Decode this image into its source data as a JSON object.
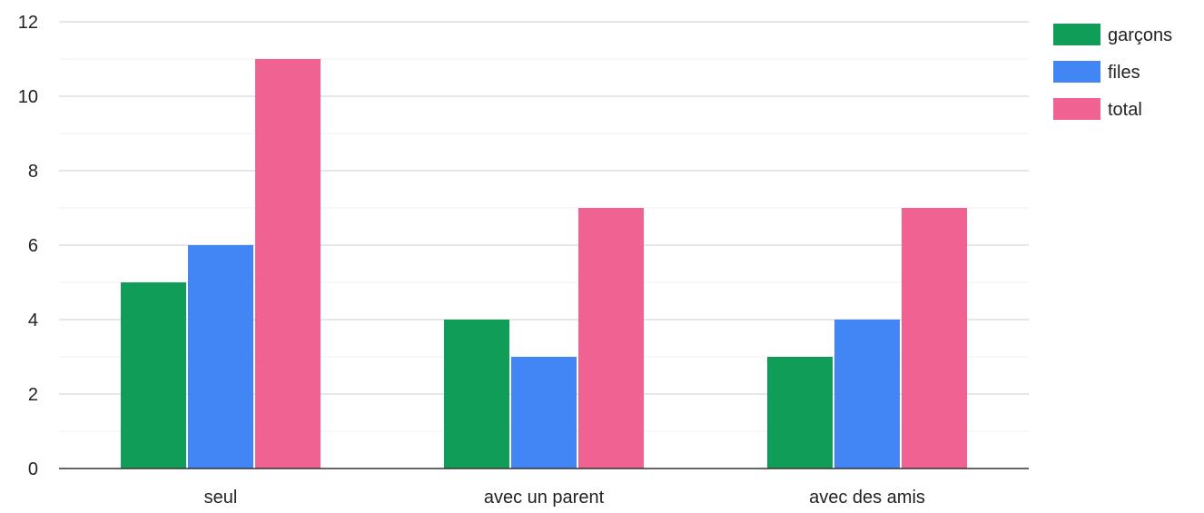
{
  "chart_data": {
    "type": "bar",
    "categories": [
      "seul",
      "avec un parent",
      "avec des amis"
    ],
    "series": [
      {
        "name": "garçons",
        "values": [
          5,
          4,
          3
        ],
        "color": "#0f9d58"
      },
      {
        "name": "files",
        "values": [
          6,
          3,
          4
        ],
        "color": "#4285f4"
      },
      {
        "name": "total",
        "values": [
          11,
          7,
          7
        ],
        "color": "#f06292"
      }
    ],
    "ylim": [
      0,
      12
    ],
    "y_ticks": [
      0,
      2,
      4,
      6,
      8,
      10,
      12
    ],
    "y_tick_labels": [
      "0",
      "2",
      "4",
      "6",
      "8",
      "10",
      "12"
    ],
    "grid": true,
    "minor_grid": true,
    "legend_position": "top-right",
    "title": "",
    "xlabel": "",
    "ylabel": ""
  }
}
